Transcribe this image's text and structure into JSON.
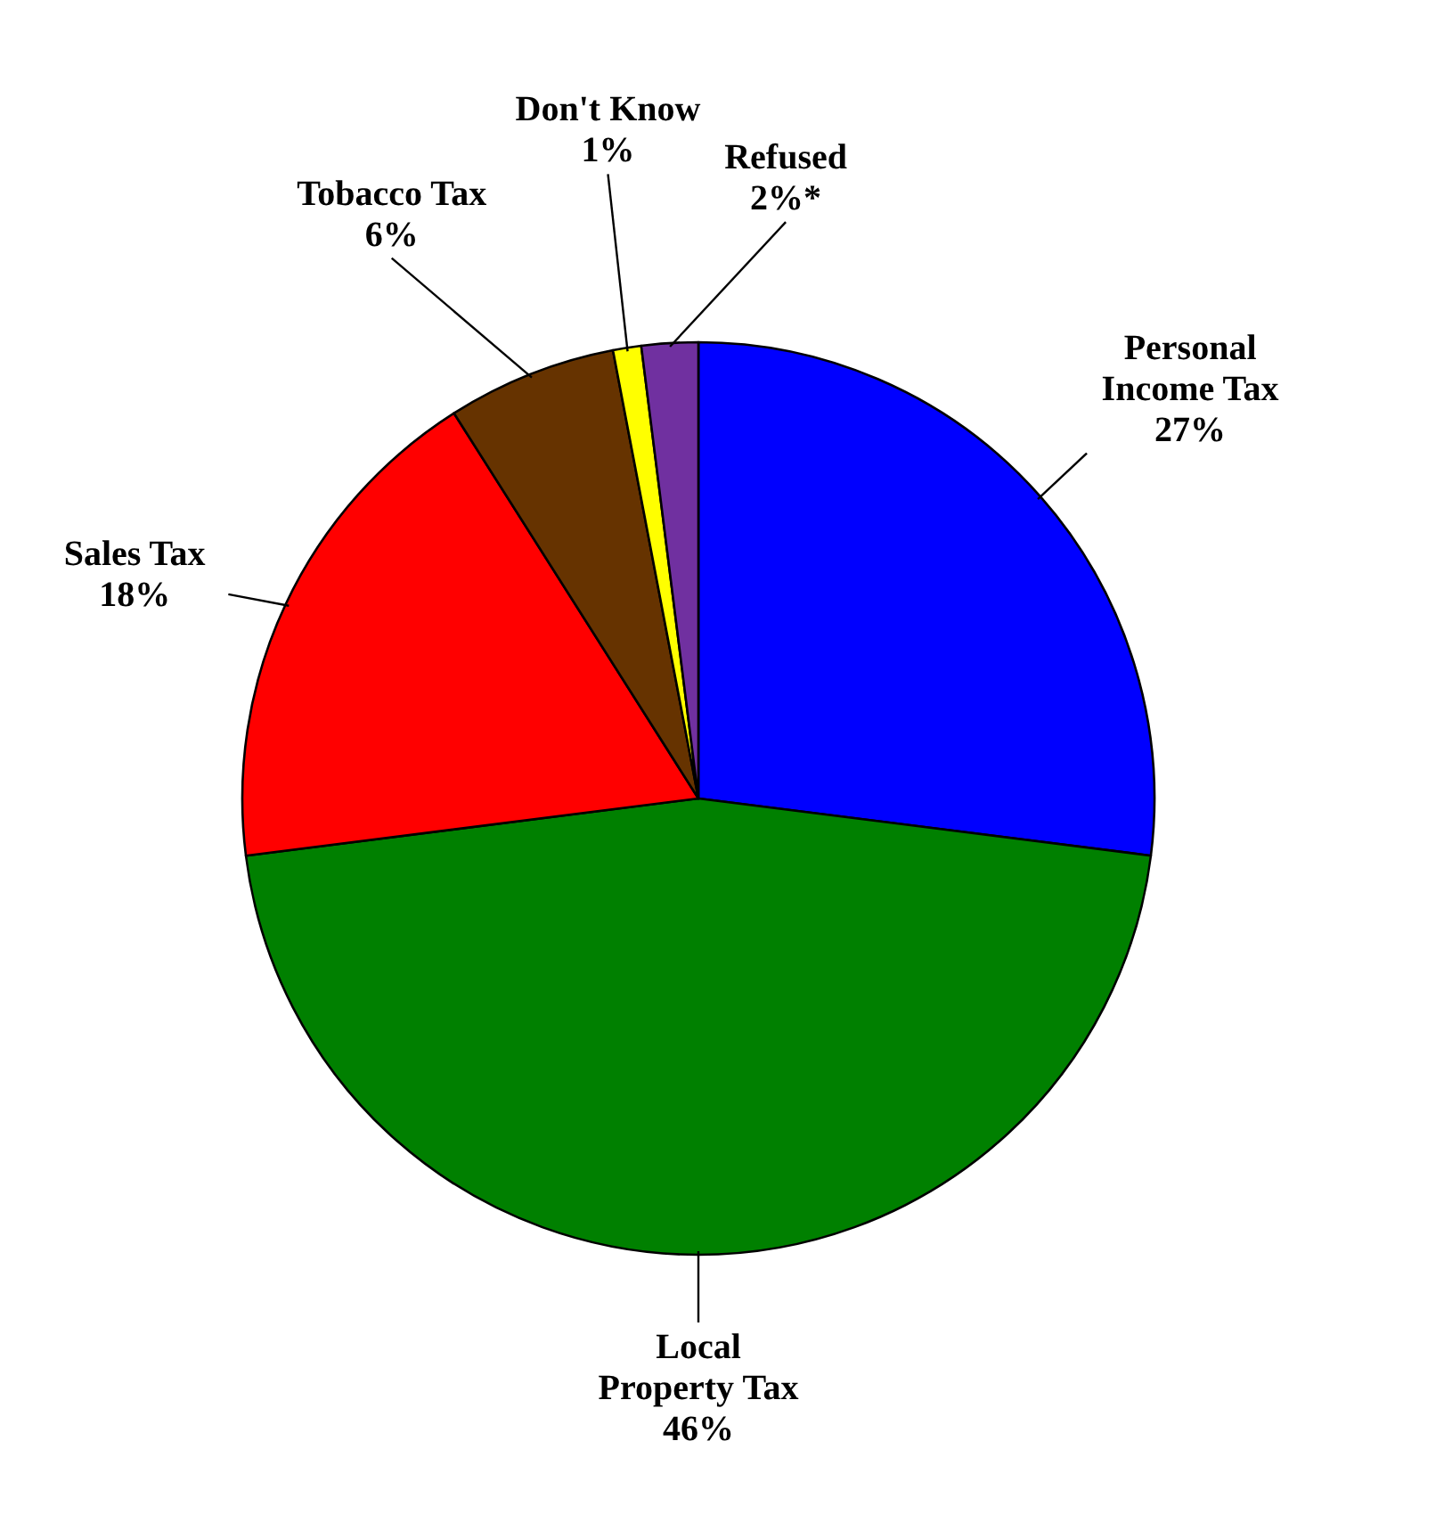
{
  "chart_data": {
    "type": "pie",
    "categories": [
      "Personal Income Tax",
      "Local Property Tax",
      "Sales Tax",
      "Tobacco Tax",
      "Don't Know",
      "Refused"
    ],
    "values": [
      27,
      46,
      18,
      6,
      1,
      2
    ],
    "colors": [
      "#0000ff",
      "#008000",
      "#ff0000",
      "#663300",
      "#ffff00",
      "#7030a0"
    ],
    "value_labels": [
      "27%",
      "46%",
      "18%",
      "6%",
      "1%",
      "2%*"
    ]
  }
}
